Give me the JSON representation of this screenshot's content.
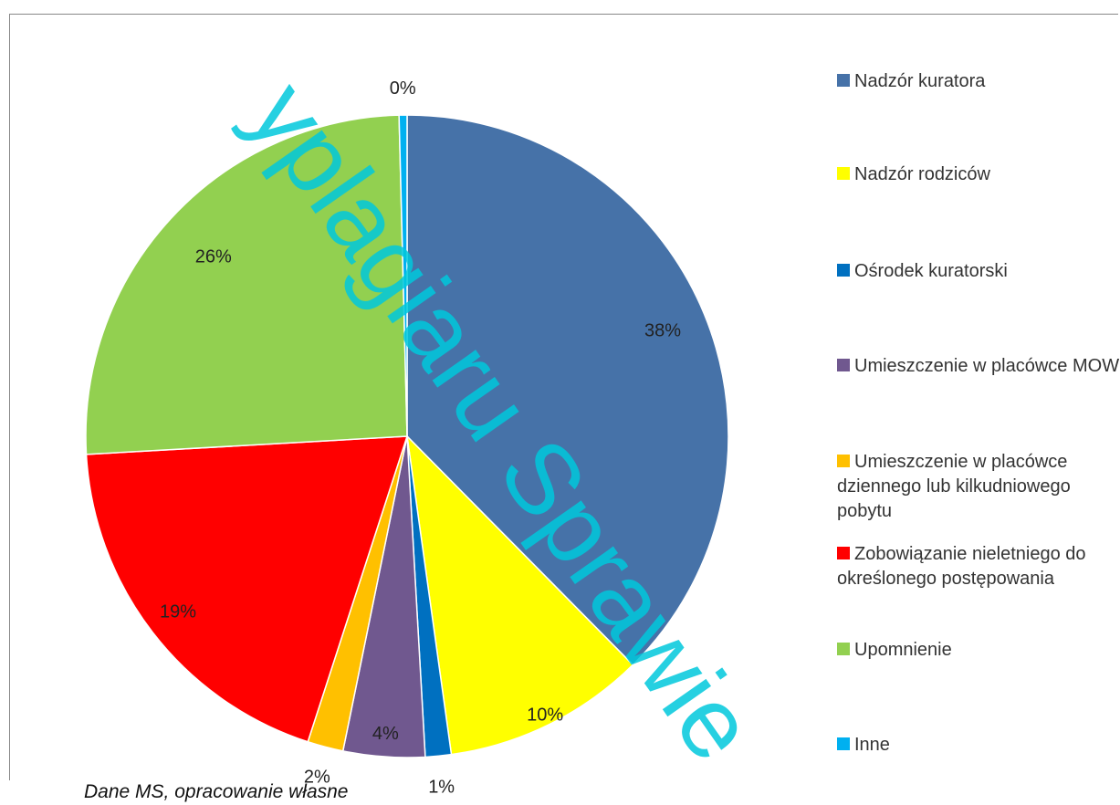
{
  "chart_data": {
    "type": "pie",
    "categories": [
      "Nadzór kuratora",
      "Nadzór rodziców",
      "Ośrodek kuratorski",
      "Umieszczenie w placówce MOW",
      "Umieszczenie w placówce dziennego lub kilkudniowego pobytu",
      "Zobowiązanie nieletniego do określonego postępowania",
      "Upomnienie",
      "Inne"
    ],
    "values": [
      37.6,
      10.2,
      1.3,
      4.1,
      1.8,
      19.1,
      25.5,
      0.4
    ],
    "value_labels": [
      "38%",
      "10%",
      "1%",
      "4%",
      "2%",
      "19%",
      "26%",
      "0%"
    ],
    "colors": [
      "#4672a8",
      "#ffff00",
      "#0070c0",
      "#70588f",
      "#ffc000",
      "#ff0000",
      "#92d050",
      "#00b0f0"
    ],
    "legend": "right",
    "caption": "Dane MS, opracowanie własne",
    "watermark": "yplagiaru Sprawie"
  }
}
